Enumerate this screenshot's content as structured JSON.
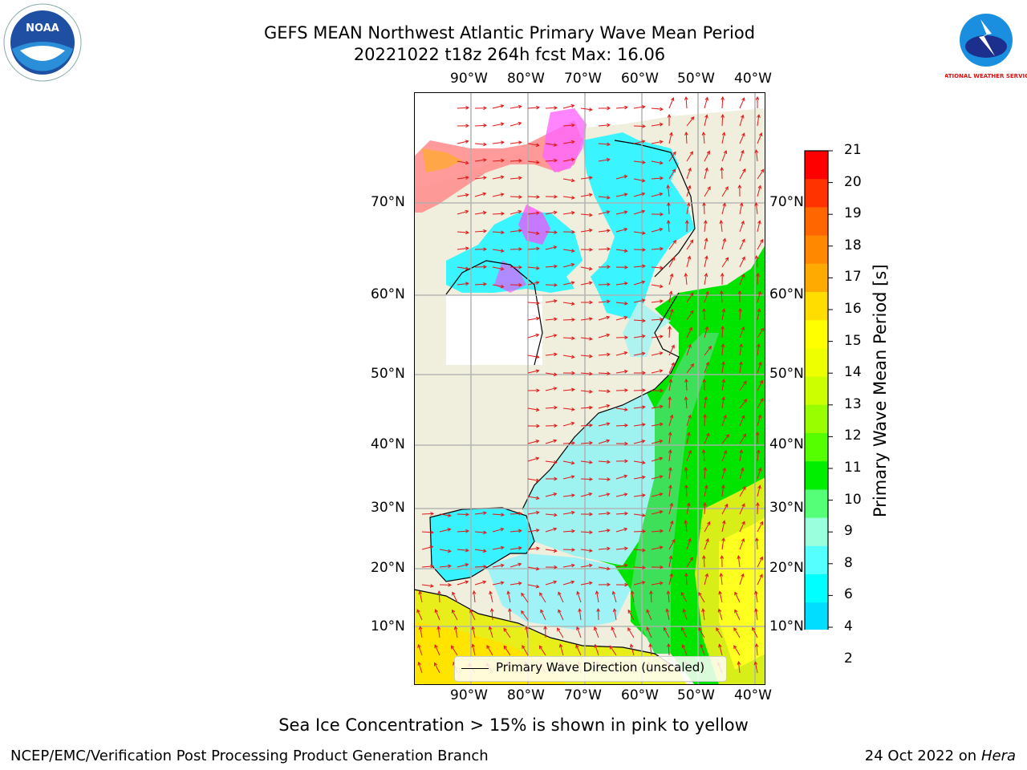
{
  "header": {
    "title_line1": "GEFS MEAN Northwest Atlantic Primary Wave Mean Period",
    "title_line2": "20221022 t18z 264h fcst   Max: 16.06"
  },
  "logos": {
    "left": "NOAA",
    "right": "NATIONAL WEATHER SERVICE"
  },
  "map": {
    "lon_ticks": [
      "90°W",
      "80°W",
      "70°W",
      "60°W",
      "50°W",
      "40°W"
    ],
    "lat_ticks": [
      "70°N",
      "60°N",
      "50°N",
      "40°N",
      "30°N",
      "20°N",
      "10°N"
    ],
    "legend": "Primary Wave Direction (unscaled)",
    "colors": {
      "land": "#f0eedc",
      "ice_white": "#ffffff"
    }
  },
  "colorbar": {
    "label": "Primary Wave Mean Period [s]",
    "ticks": [
      "21",
      "20",
      "19",
      "18",
      "17",
      "16",
      "15",
      "14",
      "13",
      "12",
      "11",
      "10",
      "9",
      "8",
      "6",
      "4",
      "2"
    ],
    "colors": [
      "#ff0000",
      "#ff3300",
      "#ff6600",
      "#ff8800",
      "#ffaa00",
      "#ffdd00",
      "#ffff00",
      "#eeff00",
      "#ccff00",
      "#99ff00",
      "#55ff00",
      "#00ee00",
      "#55ff77",
      "#99ffdd",
      "#55ffff",
      "#00ffff",
      "#00ddff",
      "#0077ff",
      "#0000ff"
    ]
  },
  "footer": {
    "note": "Sea Ice Concentration > 15% is shown in pink to yellow",
    "left": "NCEP/EMC/Verification Post Processing Product Generation Branch",
    "right_prefix": "24 Oct 2022 on ",
    "right_host": "Hera"
  }
}
